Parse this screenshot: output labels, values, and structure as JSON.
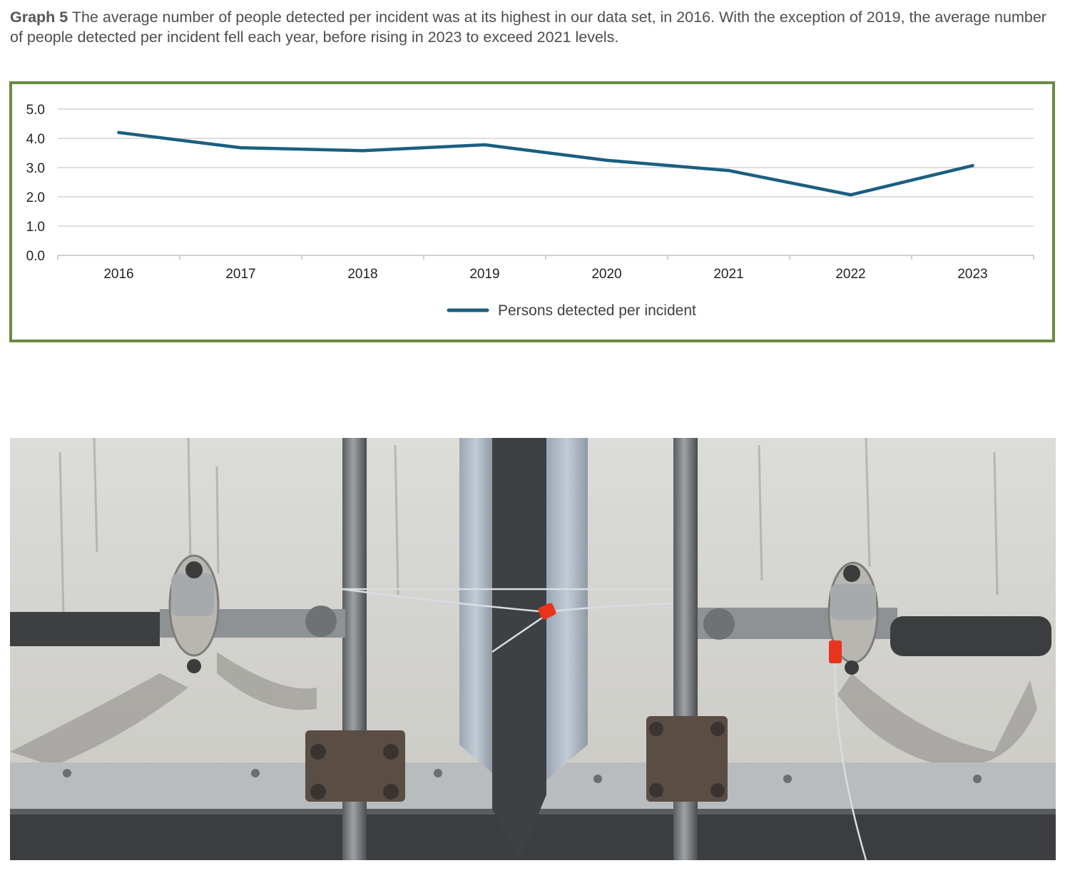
{
  "caption": {
    "label": "Graph 5",
    "text": "The average number of people detected per incident was at its highest in our data set, in 2016. With the exception of 2019, the average number of people detected per incident fell each year, before rising in 2023 to exceed 2021 levels."
  },
  "chart_data": {
    "type": "line",
    "categories": [
      "2016",
      "2017",
      "2018",
      "2019",
      "2020",
      "2021",
      "2022",
      "2023"
    ],
    "series": [
      {
        "name": "Persons detected per incident",
        "values": [
          4.2,
          3.68,
          3.58,
          3.78,
          3.25,
          2.9,
          2.07,
          3.07
        ],
        "color": "#1b5f80"
      }
    ],
    "y_ticks": [
      "0.0",
      "1.0",
      "2.0",
      "3.0",
      "4.0",
      "5.0"
    ],
    "ylim": [
      0,
      5
    ],
    "grid": true,
    "legend": "bottom-center",
    "frame_color": "#6b8a3f"
  },
  "photo": {
    "subject": "trailer rear doors with locking bars and red security seals",
    "seal_color": "#e8341c"
  }
}
